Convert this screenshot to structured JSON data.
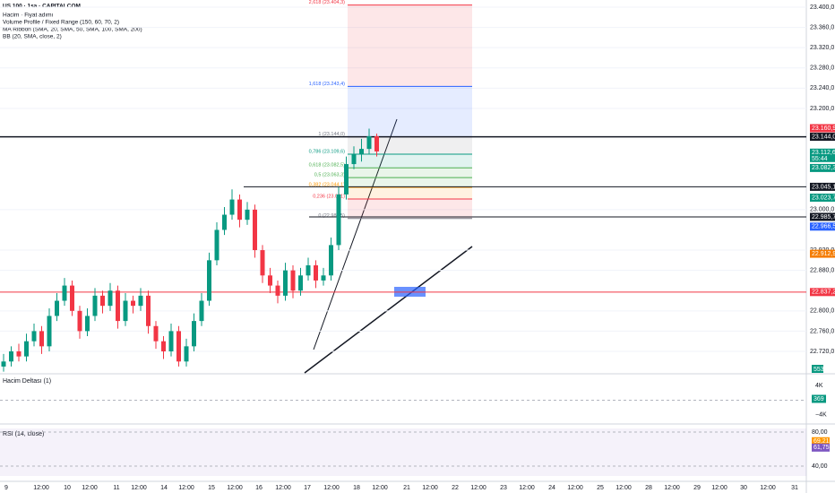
{
  "header": {
    "symbol": "US 100 · 1sa · CAPITALCOM",
    "indicators": [
      "Hacim · Fiyat adımı",
      "Volume Profile / Fixed Range (150, 60, 70, 2)",
      "MA Ribbon (SMA, 20, SMA, 50, SMA, 100, SMA, 200)",
      "BB (20, SMA, close, 2)"
    ]
  },
  "price_axis": {
    "ticks": [
      {
        "value": 23400,
        "label": "23.400,0"
      },
      {
        "value": 23360,
        "label": "23.360,0"
      },
      {
        "value": 23320,
        "label": "23.320,0"
      },
      {
        "value": 23280,
        "label": "23.280,0"
      },
      {
        "value": 23240,
        "label": "23.240,0"
      },
      {
        "value": 23200,
        "label": "23.200,0"
      },
      {
        "value": 23000,
        "label": "23.000,0"
      },
      {
        "value": 22920,
        "label": "22.920,0"
      },
      {
        "value": 22880,
        "label": "22.880,0"
      },
      {
        "value": 22800,
        "label": "22.800,0"
      },
      {
        "value": 22760,
        "label": "22.760,0"
      },
      {
        "value": 22720,
        "label": "22.720,0"
      }
    ],
    "tags": [
      {
        "value": 23160.9,
        "label": "23.160,9",
        "color": "#f23645"
      },
      {
        "value": 23144.0,
        "label": "23.144,0",
        "color": "#131722"
      },
      {
        "value": 23112.6,
        "label": "23.112,6",
        "color": "#089981",
        "countdown": "55:44"
      },
      {
        "value": 23082.3,
        "label": "23.082,3",
        "color": "#089981"
      },
      {
        "value": 23045.1,
        "label": "23.045,1",
        "color": "#131722"
      },
      {
        "value": 23023.7,
        "label": "23.023,7",
        "color": "#089981"
      },
      {
        "value": 22985.7,
        "label": "22.985,7",
        "color": "#131722"
      },
      {
        "value": 22966.5,
        "label": "22.966,5",
        "color": "#2962ff"
      },
      {
        "value": 22912.9,
        "label": "22.912,9",
        "color": "#f57c00"
      },
      {
        "value": 22837.2,
        "label": "22.837,2",
        "color": "#f23645"
      }
    ],
    "volume_tag": "553"
  },
  "fibonacci": [
    {
      "label": "2,618 (23.404,3)",
      "value": 23404.3,
      "color": "#f23645"
    },
    {
      "label": "1,618 (23.243,4)",
      "value": 23243.4,
      "color": "#2962ff"
    },
    {
      "label": "1 (23.144,0)",
      "value": 23144.0,
      "color": "#787b86"
    },
    {
      "label": "0,786 (23.109,6)",
      "value": 23109.6,
      "color": "#089981"
    },
    {
      "label": "0,618 (23.082,5)",
      "value": 23082.5,
      "color": "#4caf50"
    },
    {
      "label": "0,5 (23.063,3)",
      "value": 23063.3,
      "color": "#4caf50"
    },
    {
      "label": "0,382 (23.044,1)",
      "value": 23044.1,
      "color": "#ff9800"
    },
    {
      "label": "0,236 (23.021)",
      "value": 23021,
      "color": "#f23645"
    },
    {
      "label": "0 (22.982,5)",
      "value": 22982.5,
      "color": "#787b86"
    }
  ],
  "candles": [
    [
      22690,
      22715,
      22680,
      22700
    ],
    [
      22700,
      22730,
      22690,
      22720
    ],
    [
      22720,
      22735,
      22700,
      22710
    ],
    [
      22710,
      22755,
      22700,
      22740
    ],
    [
      22740,
      22775,
      22730,
      22760
    ],
    [
      22760,
      22770,
      22715,
      22730
    ],
    [
      22730,
      22805,
      22720,
      22790
    ],
    [
      22790,
      22835,
      22780,
      22820
    ],
    [
      22820,
      22865,
      22810,
      22850
    ],
    [
      22850,
      22860,
      22790,
      22800
    ],
    [
      22800,
      22810,
      22745,
      22760
    ],
    [
      22760,
      22805,
      22750,
      22790
    ],
    [
      22790,
      22845,
      22780,
      22830
    ],
    [
      22830,
      22840,
      22795,
      22810
    ],
    [
      22810,
      22855,
      22800,
      22840
    ],
    [
      22840,
      22850,
      22765,
      22780
    ],
    [
      22780,
      22835,
      22770,
      22820
    ],
    [
      22820,
      22830,
      22795,
      22810
    ],
    [
      22810,
      22845,
      22800,
      22830
    ],
    [
      22830,
      22840,
      22755,
      22770
    ],
    [
      22770,
      22780,
      22725,
      22740
    ],
    [
      22740,
      22750,
      22705,
      22720
    ],
    [
      22720,
      22775,
      22710,
      22760
    ],
    [
      22760,
      22770,
      22690,
      22700
    ],
    [
      22700,
      22745,
      22690,
      22730
    ],
    [
      22730,
      22795,
      22720,
      22780
    ],
    [
      22780,
      22835,
      22770,
      22820
    ],
    [
      22820,
      22915,
      22810,
      22900
    ],
    [
      22900,
      22975,
      22890,
      22960
    ],
    [
      22960,
      23005,
      22950,
      22990
    ],
    [
      22990,
      23040,
      22980,
      23020
    ],
    [
      23020,
      23030,
      22965,
      22980
    ],
    [
      22980,
      23015,
      22970,
      23000
    ],
    [
      23000,
      23010,
      22905,
      22920
    ],
    [
      22920,
      22930,
      22855,
      22870
    ],
    [
      22870,
      22885,
      22835,
      22850
    ],
    [
      22850,
      22860,
      22815,
      22830
    ],
    [
      22830,
      22895,
      22820,
      22880
    ],
    [
      22880,
      22890,
      22825,
      22840
    ],
    [
      22840,
      22885,
      22830,
      22870
    ],
    [
      22870,
      22905,
      22860,
      22890
    ],
    [
      22890,
      22900,
      22845,
      22860
    ],
    [
      22860,
      22885,
      22850,
      22870
    ],
    [
      22870,
      22945,
      22860,
      22930
    ],
    [
      22930,
      23045,
      22920,
      23030
    ],
    [
      23030,
      23105,
      23020,
      23090
    ],
    [
      23090,
      23125,
      23080,
      23110
    ],
    [
      23110,
      23140,
      23095,
      23120
    ],
    [
      23120,
      23160,
      23110,
      23145
    ],
    [
      23145,
      23150,
      23105,
      23115
    ]
  ],
  "delta_panel": {
    "title": "Hacim Deltası (1)",
    "ticks": [
      {
        "value": 4000,
        "label": "4K"
      },
      {
        "value": -4000,
        "label": "−4K"
      }
    ],
    "tag": {
      "value": 369,
      "label": "369"
    }
  },
  "rsi_panel": {
    "title": "RSI (14, close)",
    "ticks": [
      {
        "value": 80,
        "label": "80,00"
      },
      {
        "value": 40,
        "label": "40,00"
      }
    ],
    "tags": [
      {
        "value": 69.21,
        "label": "69,21",
        "color": "#ff9800"
      },
      {
        "value": 61.75,
        "label": "61,75",
        "color": "#7e57c2"
      }
    ]
  },
  "time_axis": [
    "9",
    "12:00",
    "10",
    "12:00",
    "11",
    "12:00",
    "14",
    "12:00",
    "15",
    "12:00",
    "16",
    "12:00",
    "17",
    "12:00",
    "18",
    "12:00",
    "21",
    "12:00",
    "22",
    "12:00",
    "23",
    "12:00",
    "24",
    "12:00",
    "25",
    "12:00",
    "28",
    "12:00",
    "29",
    "12:00",
    "30",
    "12:00",
    "31"
  ]
}
